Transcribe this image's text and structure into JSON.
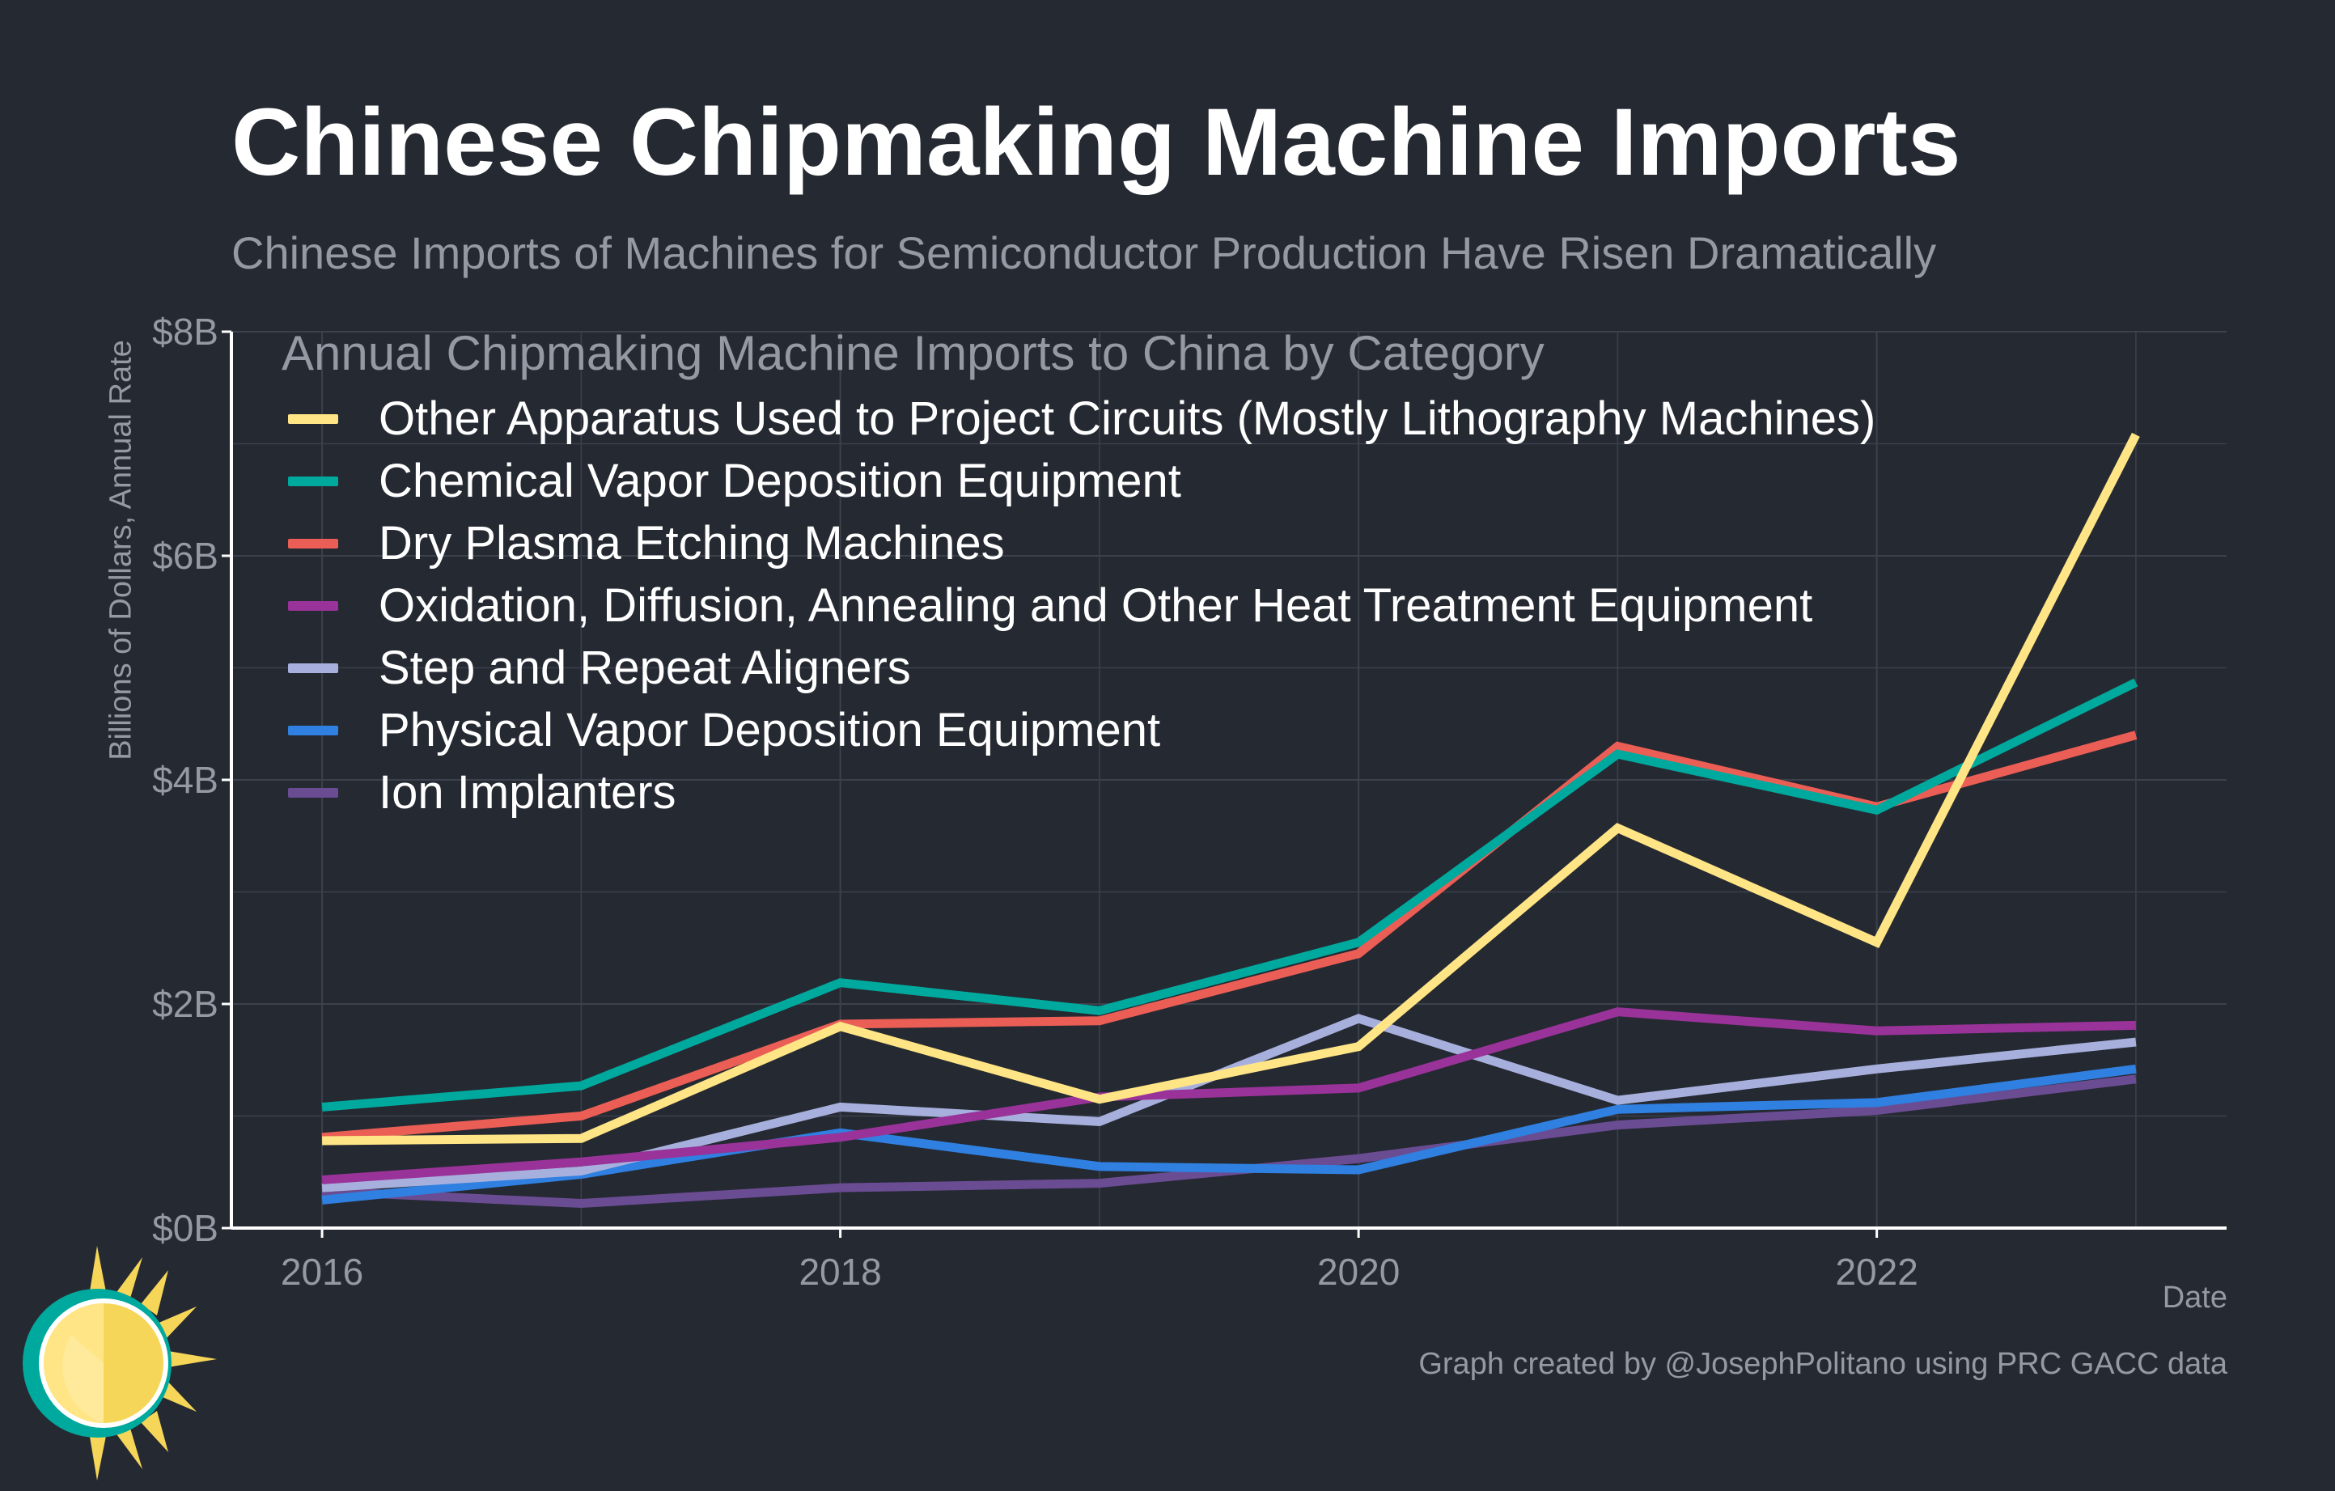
{
  "header": {
    "title": "Chinese Chipmaking Machine Imports",
    "subtitle": "Chinese Imports of Machines for Semiconductor Production Have Risen Dramatically"
  },
  "footer": {
    "credit": "Graph created by @JosephPolitano using PRC GACC data"
  },
  "logo": {
    "icon": "sun-logo-icon"
  },
  "colors": {
    "background": "#252932",
    "grid": "#3c414c",
    "axis": "#ffffff",
    "muted_text": "#9599a3"
  },
  "chart_data": {
    "type": "line",
    "legend_title": "Annual Chipmaking Machine Imports to China by Category",
    "legend_position": "top-left",
    "xlabel": "Date",
    "ylabel": "Billions of Dollars, Annual Rate",
    "x": [
      2016,
      2017,
      2018,
      2019,
      2020,
      2021,
      2022,
      2023
    ],
    "xlim": [
      2015.65,
      2023.35
    ],
    "ylim": [
      0,
      8
    ],
    "x_ticks": [
      {
        "value": 2016,
        "label": "2016"
      },
      {
        "value": 2018,
        "label": "2018"
      },
      {
        "value": 2020,
        "label": "2020"
      },
      {
        "value": 2022,
        "label": "2022"
      }
    ],
    "y_ticks": [
      {
        "value": 0,
        "label": "$0B"
      },
      {
        "value": 2,
        "label": "$2B"
      },
      {
        "value": 4,
        "label": "$4B"
      },
      {
        "value": 6,
        "label": "$6B"
      },
      {
        "value": 8,
        "label": "$8B"
      }
    ],
    "y_minor_gridlines": [
      1,
      3,
      5,
      7
    ],
    "x_minor_gridlines": [
      2017,
      2019,
      2021,
      2023
    ],
    "grid": true,
    "series": [
      {
        "name": "Ion Implanters",
        "color": "#6a4c93",
        "values": [
          0.33,
          0.22,
          0.36,
          0.4,
          0.62,
          0.92,
          1.05,
          1.33
        ]
      },
      {
        "name": "Physical Vapor Deposition Equipment",
        "color": "#2f80e0",
        "values": [
          0.25,
          0.48,
          0.85,
          0.55,
          0.52,
          1.06,
          1.12,
          1.42
        ]
      },
      {
        "name": "Step and Repeat Aligners",
        "color": "#a7b0dd",
        "values": [
          0.36,
          0.51,
          1.08,
          0.95,
          1.87,
          1.14,
          1.42,
          1.66
        ]
      },
      {
        "name": "Oxidation, Diffusion, Annealing and Other Heat Treatment Equipment",
        "color": "#993399",
        "values": [
          0.43,
          0.59,
          0.81,
          1.17,
          1.25,
          1.93,
          1.76,
          1.81
        ]
      },
      {
        "name": "Dry Plasma Etching Machines",
        "color": "#eb5e55",
        "values": [
          0.81,
          1.0,
          1.82,
          1.85,
          2.45,
          4.3,
          3.76,
          4.4
        ]
      },
      {
        "name": "Chemical Vapor Deposition Equipment",
        "color": "#00a99d",
        "values": [
          1.08,
          1.27,
          2.19,
          1.94,
          2.55,
          4.23,
          3.73,
          4.87
        ]
      },
      {
        "name": "Other Apparatus Used to Project Circuits (Mostly Lithography Machines)",
        "color": "#ffe585",
        "values": [
          0.78,
          0.8,
          1.8,
          1.15,
          1.62,
          3.57,
          2.55,
          7.08
        ]
      }
    ],
    "legend_order": [
      "Other Apparatus Used to Project Circuits (Mostly Lithography Machines)",
      "Chemical Vapor Deposition Equipment",
      "Dry Plasma Etching Machines",
      "Oxidation, Diffusion, Annealing and Other Heat Treatment Equipment",
      "Step and Repeat Aligners",
      "Physical Vapor Deposition Equipment",
      "Ion Implanters"
    ]
  }
}
